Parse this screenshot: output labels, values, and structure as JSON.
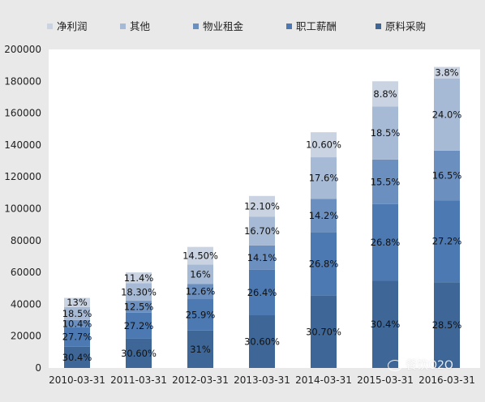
{
  "chart_data": {
    "type": "bar",
    "stacked": true,
    "categories": [
      "2010-03-31",
      "2011-03-31",
      "2012-03-31",
      "2013-03-31",
      "2014-03-31",
      "2015-03-31",
      "2016-03-31"
    ],
    "totals": [
      44000,
      60000,
      76000,
      108000,
      148000,
      180000,
      189000
    ],
    "yticks": [
      0,
      20000,
      40000,
      60000,
      80000,
      100000,
      120000,
      140000,
      160000,
      180000,
      200000
    ],
    "ylim": [
      0,
      200000
    ],
    "grid": false,
    "legend_position": "top",
    "series": [
      {
        "name": "原料采购",
        "color": "#3e6797",
        "labels": [
          "30.4%",
          "30.60%",
          "31%",
          "30.60%",
          "30.70%",
          "30.4%",
          "28.5%"
        ],
        "shares": [
          30.4,
          30.6,
          31,
          30.6,
          30.7,
          30.4,
          28.5
        ]
      },
      {
        "name": "职工薪酬",
        "color": "#4c79b1",
        "labels": [
          "27.7%",
          "27.2%",
          "25.9%",
          "26.4%",
          "26.8%",
          "26.8%",
          "27.2%"
        ],
        "shares": [
          27.7,
          27.2,
          25.9,
          26.4,
          26.8,
          26.8,
          27.2
        ]
      },
      {
        "name": "物业租金",
        "color": "#6b8fbe",
        "labels": [
          "10.4%",
          "12.5%",
          "12.6%",
          "14.1%",
          "14.2%",
          "15.5%",
          "16.5%"
        ],
        "shares": [
          10.4,
          12.5,
          12.6,
          14.1,
          14.2,
          15.5,
          16.5
        ]
      },
      {
        "name": "其他",
        "color": "#a7bad5",
        "labels": [
          "18.5%",
          "18.30%",
          "16%",
          "16.70%",
          "17.6%",
          "18.5%",
          "24.0%"
        ],
        "shares": [
          18.5,
          18.3,
          16,
          16.7,
          17.6,
          18.5,
          24.0
        ]
      },
      {
        "name": "净利润",
        "color": "#c9d3e2",
        "labels": [
          "13%",
          "11.4%",
          "14.50%",
          "12.10%",
          "10.60%",
          "8.8%",
          "3.8%"
        ],
        "shares": [
          13,
          11.4,
          14.5,
          12.1,
          10.6,
          8.8,
          3.8
        ]
      }
    ],
    "legend_order": [
      "净利润",
      "其他",
      "物业租金",
      "职工薪酬",
      "原料采购"
    ]
  },
  "watermark": "餐饮O2O"
}
